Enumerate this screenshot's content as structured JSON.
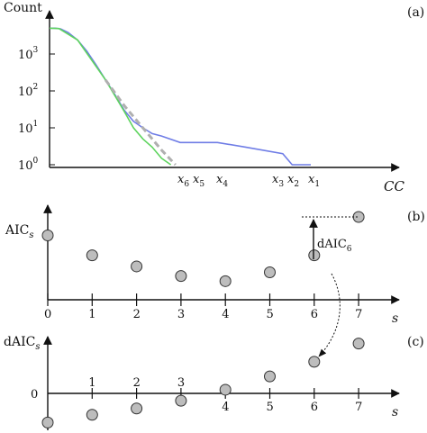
{
  "chart_data": [
    {
      "panel": "(a)",
      "type": "line",
      "ylabel": "Count",
      "xlabel": "CC",
      "yscale": "log",
      "y_ticks": [
        {
          "base": "10",
          "exp": "3",
          "value": 1000
        },
        {
          "base": "10",
          "exp": "2",
          "value": 100
        },
        {
          "base": "10",
          "exp": "1",
          "value": 10
        },
        {
          "base": "10",
          "exp": "0",
          "value": 1
        }
      ],
      "x_markers": [
        {
          "base": "x",
          "sub": "6"
        },
        {
          "base": "x",
          "sub": "5"
        },
        {
          "base": "x",
          "sub": "4"
        },
        {
          "base": "x",
          "sub": "3"
        },
        {
          "base": "x",
          "sub": "2"
        },
        {
          "base": "x",
          "sub": "1"
        }
      ],
      "series": [
        {
          "color": "#6f7de6",
          "points": [
            [
              0,
              5000
            ],
            [
              0.6,
              5000
            ],
            [
              1.2,
              4800
            ],
            [
              2,
              3800
            ],
            [
              3,
              2400
            ],
            [
              4,
              1200
            ],
            [
              5,
              500
            ],
            [
              6,
              200
            ],
            [
              7,
              80
            ],
            [
              8,
              30
            ],
            [
              9,
              15
            ],
            [
              10,
              10
            ],
            [
              11,
              7
            ],
            [
              12,
              6
            ],
            [
              14,
              4
            ],
            [
              18,
              4
            ],
            [
              21,
              3
            ],
            [
              25,
              2
            ],
            [
              26,
              1
            ],
            [
              28,
              1
            ]
          ]
        },
        {
          "color": "#5fd45f",
          "points": [
            [
              0,
              5000
            ],
            [
              1,
              4900
            ],
            [
              3,
              2400
            ],
            [
              6,
              200
            ],
            [
              8,
              28
            ],
            [
              9,
              10
            ],
            [
              10,
              5
            ],
            [
              11,
              3
            ],
            [
              12,
              1.5
            ],
            [
              13,
              1
            ]
          ]
        },
        {
          "color": "#b0b0b0",
          "dashed": true,
          "points": [
            [
              6,
              200
            ],
            [
              8,
              40
            ],
            [
              10,
              10
            ],
            [
              12,
              2.5
            ],
            [
              13.5,
              1
            ]
          ]
        }
      ]
    },
    {
      "panel": "(b)",
      "type": "scatter",
      "ylabel": {
        "base": "AIC",
        "sub": "s"
      },
      "xlabel": "s",
      "x_ticks": [
        "0",
        "1",
        "2",
        "3",
        "4",
        "5",
        "6",
        "7"
      ],
      "values": [
        {
          "s": 0,
          "y": 0.75
        },
        {
          "s": 1,
          "y": 0.48
        },
        {
          "s": 2,
          "y": 0.33
        },
        {
          "s": 3,
          "y": 0.2
        },
        {
          "s": 4,
          "y": 0.13
        },
        {
          "s": 5,
          "y": 0.25
        },
        {
          "s": 6,
          "y": 0.48
        },
        {
          "s": 7,
          "y": 1.0
        }
      ],
      "annotation": {
        "base": "dAIC",
        "sub": "6"
      }
    },
    {
      "panel": "(c)",
      "type": "scatter",
      "ylabel": {
        "base": "dAIC",
        "sub": "s"
      },
      "xlabel": "s",
      "y_tick": "0",
      "x_ticks_above": [
        "1",
        "2",
        "3"
      ],
      "x_ticks_below": [
        "4",
        "5",
        "6",
        "7"
      ],
      "values": [
        {
          "s": 0,
          "y": -1.2
        },
        {
          "s": 1,
          "y": -0.88
        },
        {
          "s": 2,
          "y": -0.62
        },
        {
          "s": 3,
          "y": -0.3
        },
        {
          "s": 4,
          "y": 0.15
        },
        {
          "s": 5,
          "y": 0.7
        },
        {
          "s": 6,
          "y": 1.3
        },
        {
          "s": 7,
          "y": 2.05
        }
      ]
    }
  ]
}
